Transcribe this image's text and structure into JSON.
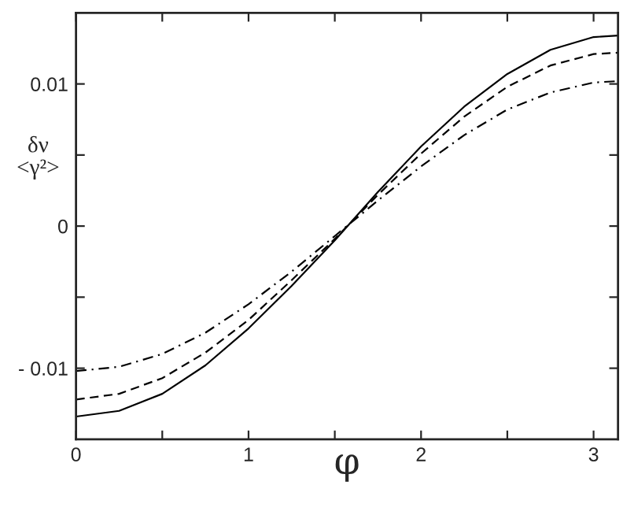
{
  "chart_data": {
    "type": "line",
    "xlabel": "φ",
    "ylabel": "δν\n<γ²>",
    "x": [
      0,
      0.25,
      0.5,
      0.75,
      1,
      1.25,
      1.5,
      1.75,
      2,
      2.25,
      2.5,
      2.75,
      3,
      3.1416
    ],
    "series": [
      {
        "color": "#000000",
        "line_style": "solid",
        "values": [
          -0.0134,
          -0.013,
          -0.0118,
          -0.0098,
          -0.0072,
          -0.0042,
          -0.001,
          0.0024,
          0.0056,
          0.0084,
          0.0107,
          0.0124,
          0.0133,
          0.0134
        ]
      },
      {
        "color": "#000000",
        "line_style": "dashed",
        "values": [
          -0.0122,
          -0.0118,
          -0.0107,
          -0.0089,
          -0.0066,
          -0.0038,
          -0.0009,
          0.0022,
          0.0051,
          0.0077,
          0.0098,
          0.0113,
          0.0121,
          0.0122
        ]
      },
      {
        "color": "#000000",
        "line_style": "dashdot",
        "values": [
          -0.0102,
          -0.0099,
          -0.009,
          -0.0075,
          -0.0055,
          -0.0032,
          -0.0007,
          0.0018,
          0.0042,
          0.0064,
          0.0082,
          0.0094,
          0.0101,
          0.0102
        ]
      }
    ],
    "xlim": [
      0,
      3.1416
    ],
    "ylim": [
      -0.015,
      0.015
    ],
    "xticks": [
      0,
      {
        "value": 0.5,
        "label": null
      },
      1,
      {
        "value": 1.5,
        "label": null
      },
      2,
      {
        "value": 2.5,
        "label": null
      },
      3
    ],
    "yticks": [
      {
        "value": -0.01,
        "label": "- 0.01"
      },
      {
        "value": -0.005,
        "label": null
      },
      0,
      {
        "value": 0.005,
        "label": null
      },
      {
        "value": 0.01,
        "label": "0.01"
      }
    ],
    "grid": false,
    "legend": false,
    "marker": "none"
  }
}
